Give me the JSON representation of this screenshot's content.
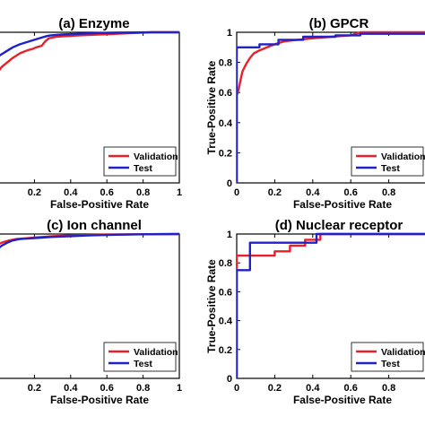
{
  "colors": {
    "validation": "#e8202a",
    "test": "#1f22c8",
    "axis": "#000000"
  },
  "chart_data": [
    {
      "type": "line",
      "title": "(a) Enzyme",
      "xlabel": "False-Positive Rate",
      "ylabel": "",
      "xlim": [
        0,
        1
      ],
      "ylim": [
        0,
        1
      ],
      "xticks": [
        "0.2",
        "0.4",
        "0.6",
        "0.8",
        "1"
      ],
      "yticks": [],
      "legend_placement": "bottom-right",
      "series": [
        {
          "name": "Validation",
          "x": [
            0,
            0.02,
            0.05,
            0.08,
            0.12,
            0.16,
            0.19,
            0.21,
            0.24,
            0.26,
            0.28,
            0.32,
            0.38,
            0.45,
            0.55,
            0.65,
            0.75,
            0.85,
            1.0
          ],
          "y": [
            0.74,
            0.77,
            0.8,
            0.83,
            0.86,
            0.88,
            0.89,
            0.9,
            0.91,
            0.94,
            0.96,
            0.97,
            0.975,
            0.98,
            0.985,
            0.99,
            0.995,
            1.0,
            1.0
          ]
        },
        {
          "name": "Test",
          "x": [
            0,
            0.04,
            0.08,
            0.12,
            0.16,
            0.2,
            0.24,
            0.27,
            0.29,
            0.35,
            0.45,
            0.55,
            0.7,
            0.85,
            1.0
          ],
          "y": [
            0.84,
            0.87,
            0.9,
            0.92,
            0.935,
            0.95,
            0.965,
            0.975,
            0.98,
            0.985,
            0.99,
            0.995,
            0.998,
            1.0,
            1.0
          ]
        }
      ]
    },
    {
      "type": "line",
      "title": "(b) GPCR",
      "xlabel": "False-Positive Rate",
      "ylabel": "True-Positive Rate",
      "xlim": [
        0,
        1
      ],
      "ylim": [
        0,
        1
      ],
      "xticks": [
        "0",
        "0.2",
        "0.4",
        "0.6",
        "0.8"
      ],
      "yticks": [
        "0",
        "0.2",
        "0.4",
        "0.6",
        "0.8",
        "1"
      ],
      "legend_placement": "bottom-right",
      "series": [
        {
          "name": "Validation",
          "x": [
            0,
            0,
            0.01,
            0.02,
            0.03,
            0.05,
            0.07,
            0.09,
            0.12,
            0.16,
            0.2,
            0.25,
            0.32,
            0.4,
            0.5,
            0.6,
            0.65,
            0.8,
            1.0
          ],
          "y": [
            0,
            0.58,
            0.62,
            0.68,
            0.74,
            0.79,
            0.83,
            0.86,
            0.88,
            0.9,
            0.92,
            0.94,
            0.95,
            0.96,
            0.97,
            0.98,
            1.0,
            1.0,
            1.0
          ]
        },
        {
          "name": "Test",
          "x": [
            0,
            0,
            0.12,
            0.12,
            0.22,
            0.22,
            0.35,
            0.35,
            0.52,
            0.52,
            0.65,
            0.65,
            1.0
          ],
          "y": [
            0,
            0.9,
            0.9,
            0.92,
            0.92,
            0.95,
            0.95,
            0.97,
            0.97,
            0.98,
            0.98,
            0.99,
            0.99
          ]
        }
      ]
    },
    {
      "type": "line",
      "title": "(c) Ion channel",
      "xlabel": "False-Positive Rate",
      "ylabel": "",
      "xlim": [
        0,
        1
      ],
      "ylim": [
        0,
        1
      ],
      "xticks": [
        "0.2",
        "0.4",
        "0.6",
        "0.8",
        "1"
      ],
      "yticks": [],
      "legend_placement": "bottom-right",
      "series": [
        {
          "name": "Validation",
          "x": [
            0,
            0.03,
            0.06,
            0.1,
            0.15,
            0.2,
            0.25,
            0.3,
            0.4,
            0.5,
            0.6,
            0.8,
            1.0
          ],
          "y": [
            0.93,
            0.945,
            0.955,
            0.965,
            0.97,
            0.975,
            0.98,
            0.985,
            0.99,
            0.993,
            0.996,
            0.999,
            1.0
          ]
        },
        {
          "name": "Test",
          "x": [
            0,
            0.02,
            0.05,
            0.08,
            0.12,
            0.18,
            0.24,
            0.3,
            0.4,
            0.5,
            0.65,
            0.8,
            1.0
          ],
          "y": [
            0.9,
            0.92,
            0.94,
            0.955,
            0.965,
            0.97,
            0.975,
            0.98,
            0.985,
            0.99,
            0.995,
            0.998,
            1.0
          ]
        }
      ]
    },
    {
      "type": "line",
      "title": "(d) Nuclear receptor",
      "xlabel": "False-Positive Rate",
      "ylabel": "True-Positive Rate",
      "xlim": [
        0,
        1
      ],
      "ylim": [
        0,
        1
      ],
      "xticks": [
        "0",
        "0.2",
        "0.4",
        "0.6",
        "0.8"
      ],
      "yticks": [
        "0",
        "0.2",
        "0.4",
        "0.6",
        "0.8",
        "1"
      ],
      "legend_placement": "bottom-right",
      "series": [
        {
          "name": "Validation",
          "x": [
            0,
            0,
            0.05,
            0.05,
            0.2,
            0.2,
            0.28,
            0.28,
            0.36,
            0.36,
            0.44,
            0.44,
            1.0
          ],
          "y": [
            0,
            0.85,
            0.85,
            0.85,
            0.85,
            0.88,
            0.88,
            0.92,
            0.92,
            0.96,
            0.96,
            1.0,
            1.0
          ]
        },
        {
          "name": "Test",
          "x": [
            0,
            0,
            0.07,
            0.07,
            0.42,
            0.42,
            1.0
          ],
          "y": [
            0,
            0.75,
            0.75,
            0.94,
            0.94,
            1.0,
            1.0
          ]
        }
      ]
    }
  ]
}
